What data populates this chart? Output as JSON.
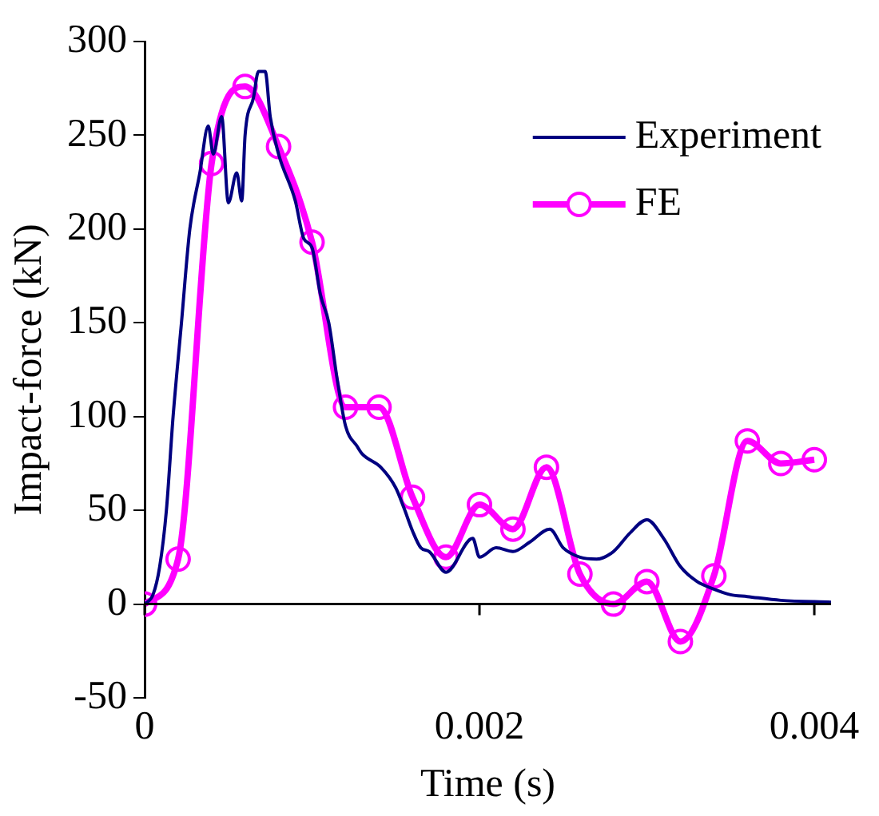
{
  "chart_data": {
    "type": "line",
    "xlabel": "Time (s)",
    "ylabel": "Impact-force (kN)",
    "xlim": [
      0,
      0.0041
    ],
    "ylim": [
      -50,
      300
    ],
    "xticks": [
      0,
      0.002,
      0.004
    ],
    "yticks": [
      -50,
      0,
      50,
      100,
      150,
      200,
      250,
      300
    ],
    "grid": false,
    "legend": "top right",
    "series": [
      {
        "name": "Experiment",
        "color": "#000080",
        "marker": "none",
        "x": [
          0,
          5e-05,
          9e-05,
          0.00013,
          0.00017,
          0.00022,
          0.00027,
          0.00033,
          0.00038,
          0.00041,
          0.00046,
          0.0005,
          0.00055,
          0.00058,
          0.0006,
          0.00065,
          0.00068,
          0.00072,
          0.00075,
          0.0008,
          0.0009,
          0.00095,
          0.001,
          0.00105,
          0.0011,
          0.00115,
          0.0012,
          0.00127,
          0.0013,
          0.00141,
          0.0015,
          0.00155,
          0.0016,
          0.00165,
          0.0017,
          0.0018,
          0.00196,
          0.002,
          0.0021,
          0.0022,
          0.0023,
          0.00242,
          0.0025,
          0.0026,
          0.0027,
          0.0028,
          0.0029,
          0.003,
          0.0031,
          0.0032,
          0.0033,
          0.0034,
          0.0035,
          0.0036,
          0.0038,
          0.0041
        ],
        "values": [
          0,
          5,
          20,
          50,
          100,
          150,
          200,
          230,
          255,
          240,
          260,
          214,
          230,
          215,
          250,
          270,
          284,
          284,
          260,
          240,
          215,
          195,
          190,
          165,
          150,
          120,
          95,
          84,
          80,
          73,
          62,
          51,
          39,
          30,
          28,
          17,
          35,
          25,
          30,
          28,
          33,
          40,
          30,
          25,
          24,
          28,
          38,
          45,
          35,
          20,
          12,
          8,
          5,
          4,
          2,
          1
        ]
      },
      {
        "name": "FE",
        "color": "#ff00ff",
        "marker": "circle",
        "x": [
          0,
          0.0002,
          0.0004,
          0.0006,
          0.0008,
          0.001,
          0.0012,
          0.0014,
          0.0016,
          0.0018,
          0.002,
          0.0022,
          0.0024,
          0.0026,
          0.0028,
          0.003,
          0.0032,
          0.0034,
          0.0036,
          0.0038,
          0.004
        ],
        "values": [
          0,
          24,
          235,
          276,
          244,
          193,
          105,
          105,
          57,
          25,
          53,
          40,
          73,
          16,
          0,
          12,
          -20,
          15,
          87,
          75,
          77
        ]
      }
    ]
  }
}
